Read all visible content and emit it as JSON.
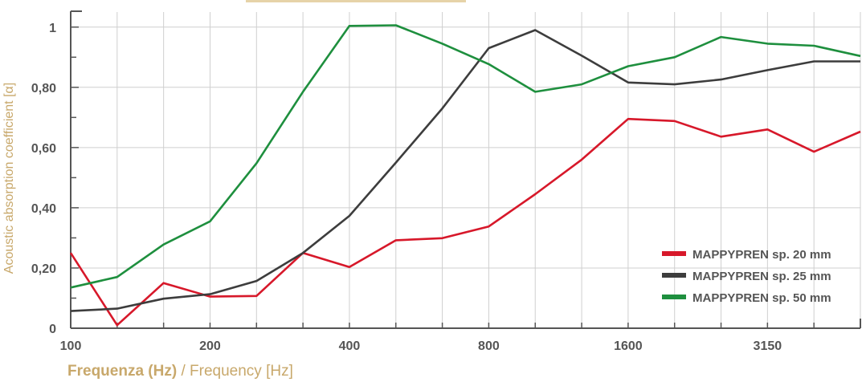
{
  "chart_data": {
    "type": "line",
    "x": [
      "100",
      "125",
      "160",
      "200",
      "250",
      "315",
      "400",
      "500",
      "630",
      "800",
      "1000",
      "1250",
      "1600",
      "2000",
      "2500",
      "3150",
      "4000",
      "5000"
    ],
    "x_tick_labels": [
      "100",
      "200",
      "400",
      "800",
      "1600",
      "3150"
    ],
    "y_tick_labels": [
      "0",
      "0,20",
      "0,40",
      "0,60",
      "0,80",
      "1"
    ],
    "ylim": [
      0,
      1.05
    ],
    "ylabel": "Acoustic absorption coefficient [α]",
    "xlabel_it": "Frequenza (Hz)",
    "xlabel_en": " / Frequency [Hz]",
    "grid": true,
    "legend_position": "bottom-right",
    "series": [
      {
        "name": "MAPPYPREN sp. 20 mm",
        "color": "#d7182a",
        "values": [
          0.25,
          0.01,
          0.15,
          0.105,
          0.107,
          0.25,
          0.203,
          0.292,
          0.299,
          0.338,
          0.445,
          0.56,
          0.695,
          0.688,
          0.636,
          0.66,
          0.586,
          0.653
        ]
      },
      {
        "name": "MAPPYPREN sp. 25 mm",
        "color": "#3d3d3d",
        "values": [
          0.057,
          0.065,
          0.098,
          0.113,
          0.157,
          0.25,
          0.373,
          0.55,
          0.73,
          0.93,
          0.99,
          0.905,
          0.816,
          0.81,
          0.826,
          0.857,
          0.886,
          0.886
        ]
      },
      {
        "name": "MAPPYPREN sp. 50 mm",
        "color": "#1e8f3e",
        "values": [
          0.135,
          0.17,
          0.278,
          0.355,
          0.548,
          0.785,
          1.004,
          1.006,
          0.945,
          0.877,
          0.785,
          0.81,
          0.87,
          0.9,
          0.967,
          0.945,
          0.938,
          0.904
        ]
      }
    ]
  }
}
